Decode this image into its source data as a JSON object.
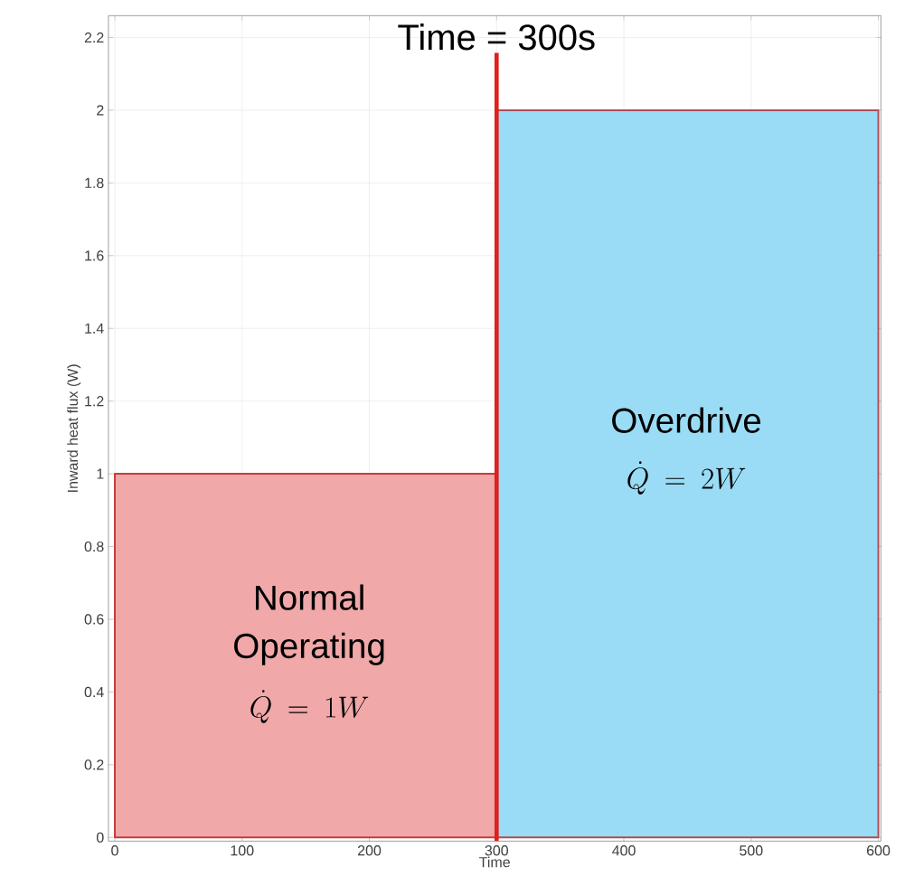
{
  "chart_data": {
    "type": "area",
    "xlabel": "Time",
    "ylabel": "Inward heat flux (W)",
    "series": [
      {
        "x": [
          0,
          300
        ],
        "values": [
          1,
          1
        ],
        "color": "#f0a8a8"
      },
      {
        "x": [
          300,
          600
        ],
        "values": [
          2,
          2
        ],
        "color": "#9adcf5"
      }
    ],
    "xlim": [
      -5,
      602
    ],
    "ylim": [
      -0.01,
      2.26
    ],
    "xticks": [
      0,
      100,
      200,
      300,
      400,
      500,
      600
    ],
    "yticks": [
      0,
      0.2,
      0.4,
      0.6,
      0.8,
      1,
      1.2,
      1.4,
      1.6,
      1.8,
      2,
      2.2
    ],
    "grid": true,
    "ref_lines": [
      {
        "axis": "x",
        "value": 300,
        "label": "Time = 300s",
        "color": "#e0201c"
      }
    ],
    "annotations": [
      "Normal Operating",
      "\\dot{Q} = 1W",
      "Overdrive",
      "\\dot{Q} = 2W"
    ]
  }
}
